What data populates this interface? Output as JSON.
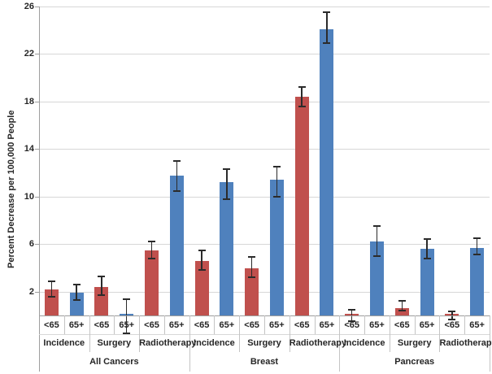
{
  "chart_data": {
    "type": "bar",
    "title": "",
    "ylabel": "Percent Decrease per 100,000 People",
    "xlabel": "",
    "ylim": [
      0,
      26
    ],
    "yticks": [
      2,
      6,
      10,
      14,
      18,
      22,
      26
    ],
    "grid": true,
    "legend": "none",
    "error_bars": true,
    "colors": {
      "lt65": "#C0504D",
      "ge65": "#4F81BD",
      "error_bar": "#2b2b2b"
    },
    "series_labels": {
      "lt65": "<65",
      "ge65": "65+"
    },
    "groups": [
      {
        "cancer": "All Cancers",
        "procedures": [
          {
            "name": "Incidence",
            "bars": [
              {
                "age": "<65",
                "series": "lt65",
                "value": 2.2,
                "err_lo": 1.6,
                "err_hi": 2.9
              },
              {
                "age": "65+",
                "series": "ge65",
                "value": 1.9,
                "err_lo": 1.3,
                "err_hi": 2.6
              }
            ]
          },
          {
            "name": "Surgery",
            "bars": [
              {
                "age": "<65",
                "series": "lt65",
                "value": 2.4,
                "err_lo": 1.7,
                "err_hi": 3.3
              },
              {
                "age": "65+",
                "series": "ge65",
                "value": 0.05,
                "err_lo": -1.5,
                "err_hi": 1.4
              }
            ]
          },
          {
            "name": "Radiotherapy",
            "bars": [
              {
                "age": "<65",
                "series": "lt65",
                "value": 5.5,
                "err_lo": 4.8,
                "err_hi": 6.2
              },
              {
                "age": "65+",
                "series": "ge65",
                "value": 11.8,
                "err_lo": 10.5,
                "err_hi": 13.0
              }
            ]
          }
        ]
      },
      {
        "cancer": "Breast",
        "procedures": [
          {
            "name": "Incidence",
            "bars": [
              {
                "age": "<65",
                "series": "lt65",
                "value": 4.6,
                "err_lo": 3.8,
                "err_hi": 5.5
              },
              {
                "age": "65+",
                "series": "ge65",
                "value": 11.2,
                "err_lo": 9.8,
                "err_hi": 12.3
              }
            ]
          },
          {
            "name": "Surgery",
            "bars": [
              {
                "age": "<65",
                "series": "lt65",
                "value": 4.0,
                "err_lo": 3.2,
                "err_hi": 4.9
              },
              {
                "age": "65+",
                "series": "ge65",
                "value": 11.4,
                "err_lo": 10.0,
                "err_hi": 12.5
              }
            ]
          },
          {
            "name": "Radiotherapy",
            "bars": [
              {
                "age": "<65",
                "series": "lt65",
                "value": 18.4,
                "err_lo": 17.6,
                "err_hi": 19.2
              },
              {
                "age": "65+",
                "series": "ge65",
                "value": 24.1,
                "err_lo": 22.9,
                "err_hi": 25.5
              }
            ]
          }
        ]
      },
      {
        "cancer": "Pancreas",
        "procedures": [
          {
            "name": "Incidence",
            "bars": [
              {
                "age": "<65",
                "series": "lt65",
                "value": 0.05,
                "err_lo": -0.5,
                "err_hi": 0.5
              },
              {
                "age": "65+",
                "series": "ge65",
                "value": 6.2,
                "err_lo": 5.0,
                "err_hi": 7.5
              }
            ]
          },
          {
            "name": "Surgery",
            "bars": [
              {
                "age": "<65",
                "series": "lt65",
                "value": 0.65,
                "err_lo": 0.4,
                "err_hi": 1.2
              },
              {
                "age": "65+",
                "series": "ge65",
                "value": 5.6,
                "err_lo": 4.8,
                "err_hi": 6.4
              }
            ]
          },
          {
            "name": "Radiotherapy",
            "bars": [
              {
                "age": "<65",
                "series": "lt65",
                "value": 0.05,
                "err_lo": -0.35,
                "err_hi": 0.35
              },
              {
                "age": "65+",
                "series": "ge65",
                "value": 5.7,
                "err_lo": 5.1,
                "err_hi": 6.5
              }
            ]
          }
        ]
      }
    ]
  }
}
